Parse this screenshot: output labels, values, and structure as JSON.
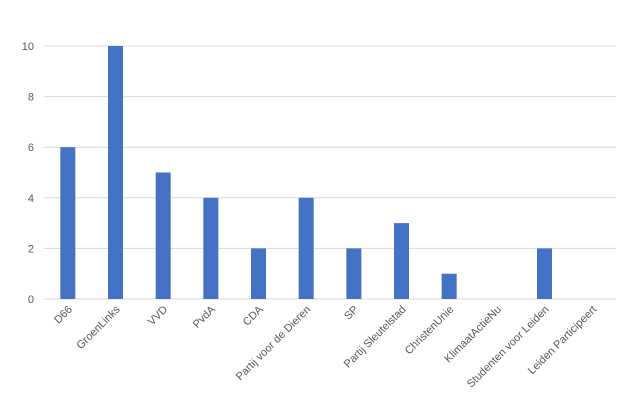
{
  "chart_data": {
    "type": "bar",
    "categories": [
      "D66",
      "GroenLinks",
      "VVD",
      "PvdA",
      "CDA",
      "Partij voor de Dieren",
      "SP",
      "Partij Sleutelstad",
      "ChristenUnie",
      "KlimaatActieNu",
      "Studenten voor Leiden",
      "Leiden Participeert"
    ],
    "values": [
      6,
      10,
      5,
      4,
      2,
      4,
      2,
      3,
      1,
      0,
      2,
      0
    ],
    "y_ticks": [
      "0",
      "2",
      "4",
      "6",
      "8",
      "10"
    ],
    "ylim": [
      0,
      10
    ],
    "grid": true,
    "bar_color": "#4472c4",
    "grid_color": "#d9d9d9",
    "title": "",
    "xlabel": "",
    "ylabel": ""
  }
}
